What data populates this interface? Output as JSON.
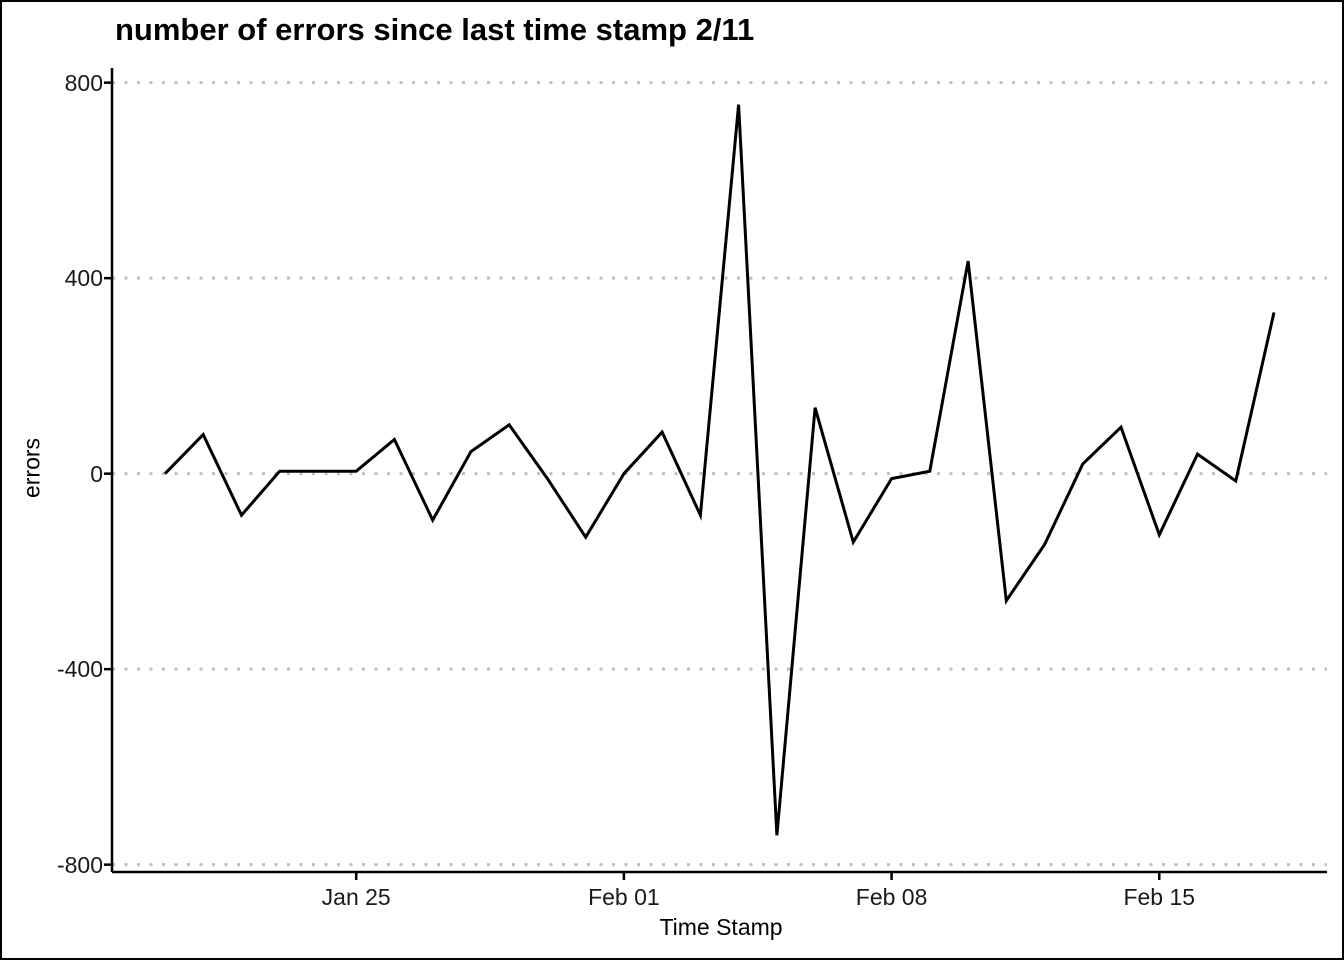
{
  "figure": {
    "title": "number of errors since last time stamp 2/11",
    "x_axis_label": "Time Stamp",
    "y_axis_label": "errors"
  },
  "chart_data": {
    "type": "line",
    "title": "number of errors since last time stamp 2/11",
    "xlabel": "Time Stamp",
    "ylabel": "errors",
    "x": [
      "Jan 20",
      "Jan 21",
      "Jan 22",
      "Jan 23",
      "Jan 24",
      "Jan 25",
      "Jan 26",
      "Jan 27",
      "Jan 28",
      "Jan 29",
      "Jan 30",
      "Jan 31",
      "Feb 01",
      "Feb 02",
      "Feb 03",
      "Feb 04",
      "Feb 05",
      "Feb 06",
      "Feb 07",
      "Feb 08",
      "Feb 09",
      "Feb 10",
      "Feb 11",
      "Feb 12",
      "Feb 13",
      "Feb 14",
      "Feb 15",
      "Feb 16",
      "Feb 17",
      "Feb 18"
    ],
    "values": [
      0,
      80,
      -85,
      5,
      5,
      5,
      70,
      -95,
      45,
      100,
      -10,
      -130,
      0,
      85,
      -85,
      755,
      -740,
      135,
      -140,
      -10,
      5,
      435,
      -260,
      -145,
      20,
      95,
      -125,
      40,
      -15,
      330
    ],
    "x_tick_labels": [
      "Jan 25",
      "Feb 01",
      "Feb 08",
      "Feb 15"
    ],
    "x_tick_indices": [
      5,
      12,
      19,
      26
    ],
    "y_ticks": [
      800,
      400,
      0,
      -400,
      -800
    ],
    "y_tick_labels": [
      "800",
      "400",
      "0",
      "-400",
      "-800"
    ],
    "ylim": [
      -815,
      830
    ],
    "grid": "horizontal-dotted",
    "legend": "none",
    "line_color": "#000000",
    "grid_color": "#bfbfbf",
    "axis_color": "#000000",
    "background": "#ffffff"
  }
}
